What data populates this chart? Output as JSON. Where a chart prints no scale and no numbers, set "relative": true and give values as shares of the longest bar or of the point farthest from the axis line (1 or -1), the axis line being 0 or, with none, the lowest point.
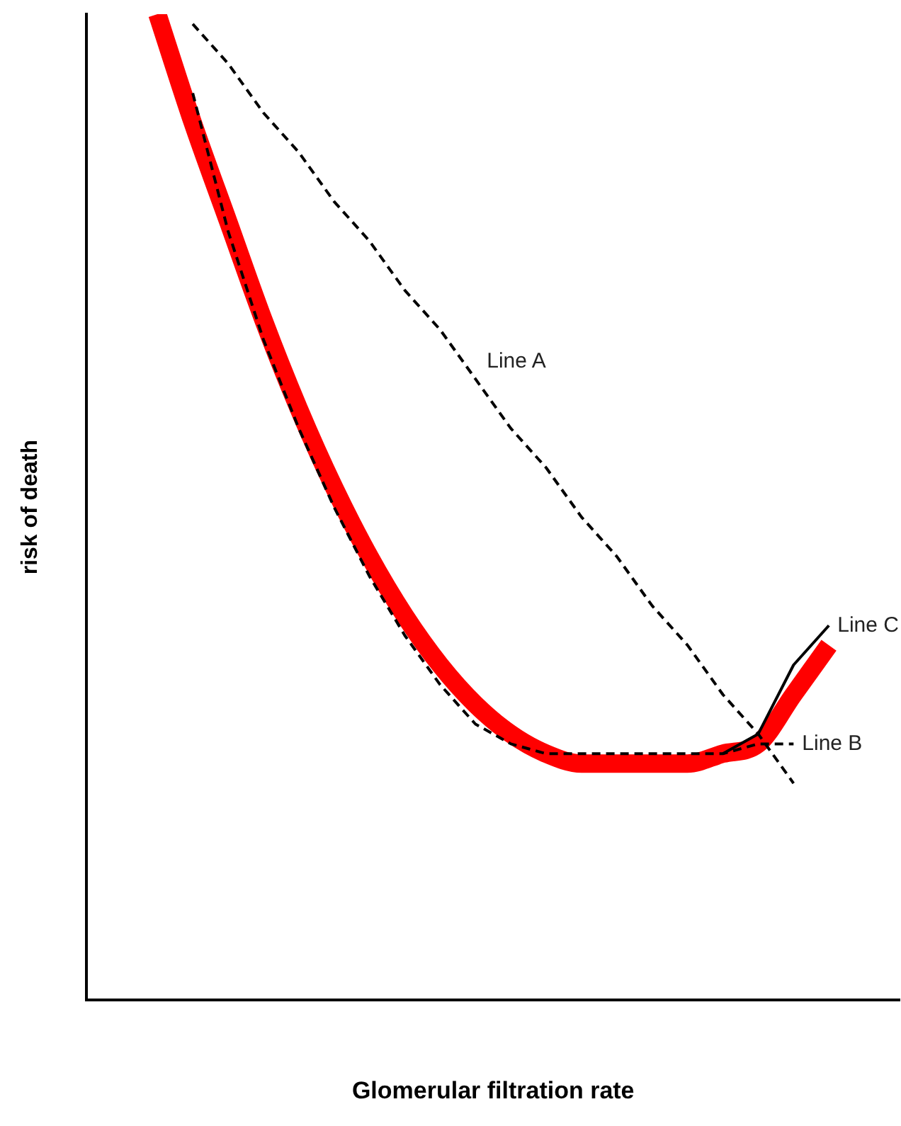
{
  "chart_data": {
    "type": "line",
    "relative": true,
    "xlabel": "Glomerular filtration rate",
    "ylabel": "risk of death",
    "legend": false,
    "grid": false,
    "marker": "none",
    "categories": [
      null,
      null,
      null,
      null,
      null,
      null,
      null,
      null,
      null,
      null,
      null,
      null,
      null,
      null,
      null,
      null,
      null,
      null,
      null,
      null,
      null,
      null,
      null,
      null
    ],
    "series": [
      {
        "color": "#ff0000",
        "line_style": "solid",
        "values": [
          null,
          null,
          1,
          0.89,
          0.79,
          0.69,
          0.6,
          0.52,
          0.45,
          0.39,
          0.34,
          0.3,
          0.27,
          0.25,
          0.24,
          0.24,
          0.24,
          0.24,
          0.25,
          0.26,
          0.31,
          0.36,
          null,
          null
        ]
      },
      {
        "name": "Line A",
        "color": "#000000",
        "line_style": "dashed",
        "values": [
          null,
          null,
          null,
          0.99,
          0.95,
          0.9,
          0.86,
          0.81,
          0.77,
          0.72,
          0.68,
          0.63,
          0.58,
          0.54,
          0.49,
          0.45,
          0.4,
          0.36,
          0.31,
          0.27,
          0.22,
          null,
          null,
          null
        ]
      },
      {
        "name": "Line B",
        "color": "#000000",
        "line_style": "dashed",
        "values": [
          null,
          null,
          null,
          0.92,
          0.78,
          0.67,
          0.58,
          0.5,
          0.43,
          0.37,
          0.32,
          0.28,
          0.26,
          0.25,
          0.25,
          0.25,
          0.25,
          0.25,
          0.25,
          0.26,
          0.26,
          null,
          null,
          null
        ]
      },
      {
        "name": "Line C",
        "color": "#000000",
        "line_style": "solid",
        "values": [
          null,
          null,
          null,
          null,
          null,
          null,
          null,
          null,
          null,
          null,
          null,
          null,
          null,
          null,
          null,
          null,
          null,
          null,
          0.25,
          0.27,
          0.34,
          0.38,
          null,
          null
        ]
      }
    ]
  }
}
